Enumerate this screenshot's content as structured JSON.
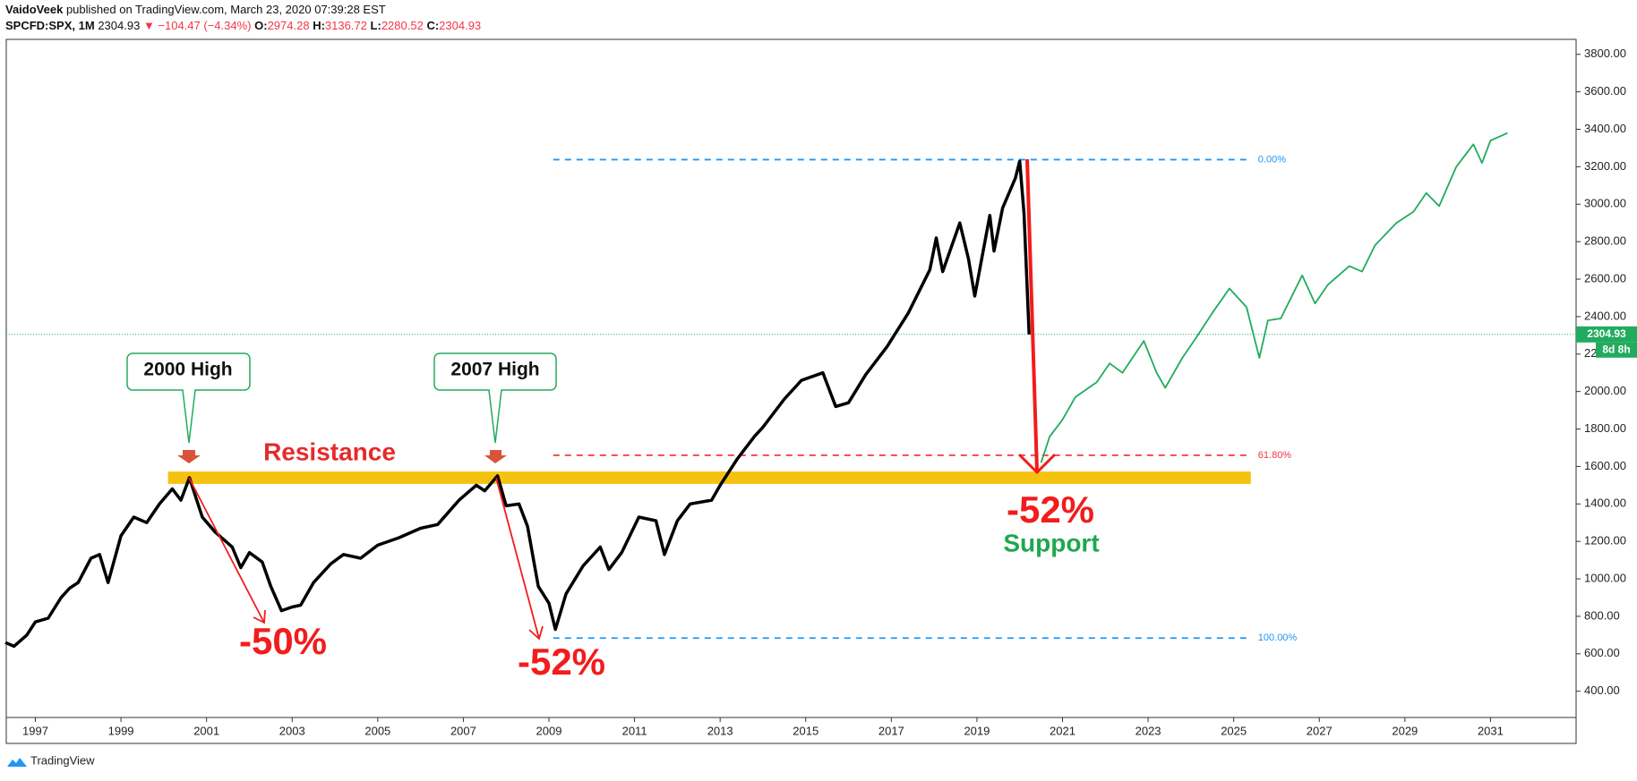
{
  "header": {
    "author": "VaidoVeek",
    "published": "published on TradingView.com, March 23, 2020 07:39:28 EST",
    "symbol": "SPCFD:SPX, 1M",
    "last": "2304.93",
    "change": "▼ −104.47 (−4.34%)",
    "ohlc": [
      {
        "label": "O:",
        "value": "2974.28"
      },
      {
        "label": "H:",
        "value": "3136.72"
      },
      {
        "label": "L:",
        "value": "2280.52"
      },
      {
        "label": "C:",
        "value": "2304.93"
      }
    ]
  },
  "footer": {
    "brand": "TradingView"
  },
  "chart_data": {
    "type": "line",
    "xlim": [
      1996.32,
      2033
    ],
    "ylim": [
      260,
      3880
    ],
    "xticks": [
      1997,
      1999,
      2001,
      2003,
      2005,
      2007,
      2009,
      2011,
      2013,
      2015,
      2017,
      2019,
      2021,
      2023,
      2025,
      2027,
      2029,
      2031
    ],
    "yticks": [
      {
        "value": 400,
        "label": "400.00"
      },
      {
        "value": 600,
        "label": "600.00"
      },
      {
        "value": 800,
        "label": "800.00"
      },
      {
        "value": 1000,
        "label": "1000.00"
      },
      {
        "value": 1200,
        "label": "1200.00"
      },
      {
        "value": 1400,
        "label": "1400.00"
      },
      {
        "value": 1600,
        "label": "1600.00"
      },
      {
        "value": 1800,
        "label": "1800.00"
      },
      {
        "value": 2000,
        "label": "2000.00"
      },
      {
        "value": 2200,
        "label": "2200.00"
      },
      {
        "value": 2400,
        "label": "2400.00"
      },
      {
        "value": 2600,
        "label": "2600.00"
      },
      {
        "value": 2800,
        "label": "2800.00"
      },
      {
        "value": 3000,
        "label": "3000.00"
      },
      {
        "value": 3200,
        "label": "3200.00"
      },
      {
        "value": 3400,
        "label": "3400.00"
      },
      {
        "value": 3600,
        "label": "3600.00"
      },
      {
        "value": 3800,
        "label": "3800.00"
      }
    ],
    "series": [
      {
        "color": "#000000",
        "x": [
          1996.3,
          1996.5,
          1996.8,
          1997.0,
          1997.3,
          1997.6,
          1997.8,
          1998.0,
          1998.3,
          1998.5,
          1998.7,
          1999.0,
          1999.3,
          1999.6,
          1999.9,
          2000.2,
          2000.4,
          2000.6,
          2000.9,
          2001.2,
          2001.6,
          2001.8,
          2002.0,
          2002.3,
          2002.5,
          2002.75,
          2003.0,
          2003.2,
          2003.5,
          2003.9,
          2004.2,
          2004.6,
          2005.0,
          2005.5,
          2006.0,
          2006.4,
          2006.9,
          2007.3,
          2007.5,
          2007.8,
          2008.0,
          2008.3,
          2008.5,
          2008.75,
          2009.0,
          2009.15,
          2009.4,
          2009.8,
          2010.2,
          2010.4,
          2010.7,
          2011.1,
          2011.5,
          2011.7,
          2012.0,
          2012.3,
          2012.8,
          2013.0,
          2013.4,
          2013.8,
          2014.0,
          2014.5,
          2014.9,
          2015.4,
          2015.7,
          2016.0,
          2016.4,
          2016.9,
          2017.4,
          2017.9,
          2018.05,
          2018.2,
          2018.6,
          2018.8,
          2018.95,
          2019.3,
          2019.4,
          2019.6,
          2019.9,
          2020.0,
          2020.1,
          2020.22
        ],
        "values": [
          660,
          640,
          700,
          770,
          790,
          900,
          950,
          980,
          1110,
          1130,
          980,
          1230,
          1330,
          1300,
          1400,
          1480,
          1420,
          1540,
          1330,
          1250,
          1170,
          1060,
          1140,
          1090,
          960,
          830,
          850,
          860,
          980,
          1080,
          1130,
          1110,
          1180,
          1220,
          1270,
          1290,
          1420,
          1500,
          1470,
          1550,
          1390,
          1400,
          1280,
          960,
          870,
          730,
          920,
          1070,
          1170,
          1050,
          1140,
          1330,
          1310,
          1130,
          1310,
          1400,
          1420,
          1500,
          1640,
          1760,
          1810,
          1960,
          2060,
          2100,
          1920,
          1940,
          2090,
          2240,
          2420,
          2650,
          2820,
          2640,
          2900,
          2710,
          2510,
          2940,
          2750,
          2980,
          3140,
          3230,
          2950,
          2305
        ]
      },
      {
        "color": "#22ab5e",
        "x": [
          2020.5,
          2020.7,
          2021.0,
          2021.3,
          2021.8,
          2022.1,
          2022.4,
          2022.9,
          2023.2,
          2023.4,
          2023.8,
          2024.1,
          2024.5,
          2024.9,
          2025.3,
          2025.6,
          2025.8,
          2026.1,
          2026.6,
          2026.9,
          2027.2,
          2027.7,
          2028.0,
          2028.3,
          2028.8,
          2029.2,
          2029.5,
          2029.8,
          2030.2,
          2030.6,
          2030.8,
          2031.0,
          2031.4
        ],
        "values": [
          1620,
          1760,
          1850,
          1970,
          2050,
          2150,
          2100,
          2270,
          2100,
          2020,
          2180,
          2280,
          2420,
          2550,
          2450,
          2180,
          2380,
          2390,
          2620,
          2470,
          2570,
          2670,
          2640,
          2780,
          2900,
          2960,
          3060,
          2990,
          3200,
          3320,
          3220,
          3340,
          3380
        ]
      }
    ],
    "last_price": 2304.93,
    "countdown": "8d 8h",
    "fib": {
      "x": [
        2009.1,
        2025.4
      ],
      "levels": [
        {
          "value": 3238,
          "label": "0.00%",
          "color": "#2196f3"
        },
        {
          "value": 1660,
          "label": "61.80%",
          "color": "#f23645"
        },
        {
          "value": 684,
          "label": "100.00%",
          "color": "#2196f3"
        }
      ]
    },
    "resistance": {
      "name": "Resistance",
      "x": [
        2000.1,
        2025.4
      ],
      "y": [
        1507,
        1573
      ],
      "color": "#f5c211"
    },
    "annotations": {
      "high_2000": "2000 High",
      "high_2007": "2007 High",
      "drop_2000": "-50%",
      "drop_2007": "-52%",
      "drop_2020": "-52%",
      "support": "Support"
    }
  }
}
